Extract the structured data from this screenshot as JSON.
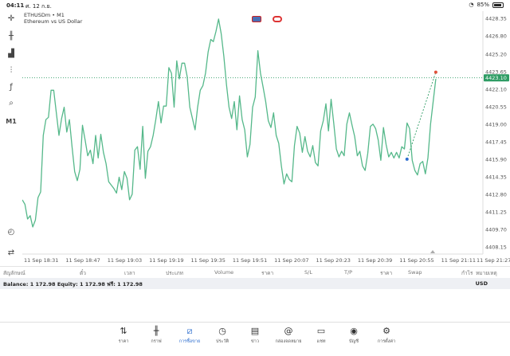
{
  "status": {
    "time": "04:11",
    "date": "ศ. 12 ก.ย.",
    "battery": "85%"
  },
  "symbol": {
    "title": "ETHUSDm • M1",
    "description": "Ethereum vs US Dollar"
  },
  "current_price": "4423.10",
  "colors": {
    "line": "#55b88a",
    "price_badge": "#2e9c64",
    "accent": "#2f6fcf"
  },
  "toolbar": {
    "timeframe": "M1"
  },
  "chart_data": {
    "type": "line",
    "y_ticks": [
      "4428.35",
      "4426.80",
      "4425.20",
      "4423.65",
      "4422.10",
      "4420.55",
      "4419.00",
      "4417.45",
      "4415.90",
      "4414.35",
      "4412.80",
      "4411.25",
      "4409.70",
      "4408.15"
    ],
    "x_ticks": [
      "11 Sep 18:31",
      "11 Sep 18:47",
      "11 Sep 19:03",
      "11 Sep 19:19",
      "11 Sep 19:35",
      "11 Sep 19:51",
      "11 Sep 20:07",
      "11 Sep 20:23",
      "11 Sep 20:39",
      "11 Sep 20:55",
      "11 Sep 21:11",
      "11 Sep 21:27"
    ],
    "ylim": [
      4407.5,
      4429.0
    ],
    "xlim": [
      0,
      176
    ],
    "x": [
      0,
      1,
      2,
      3,
      4,
      5,
      6,
      7,
      8,
      9,
      10,
      11,
      12,
      13,
      14,
      15,
      16,
      17,
      18,
      19,
      20,
      21,
      22,
      23,
      24,
      25,
      26,
      27,
      28,
      29,
      30,
      31,
      32,
      33,
      34,
      35,
      36,
      37,
      38,
      39,
      40,
      41,
      42,
      43,
      44,
      45,
      46,
      47,
      48,
      49,
      50,
      51,
      52,
      53,
      54,
      55,
      56,
      57,
      58,
      59,
      60,
      61,
      62,
      63,
      64,
      65,
      66,
      67,
      68,
      69,
      70,
      71,
      72,
      73,
      74,
      75,
      76,
      77,
      78,
      79,
      80,
      81,
      82,
      83,
      84,
      85,
      86,
      87,
      88,
      89,
      90,
      91,
      92,
      93,
      94,
      95,
      96,
      97,
      98,
      99,
      100,
      101,
      102,
      103,
      104,
      105,
      106,
      107,
      108,
      109,
      110,
      111,
      112,
      113,
      114,
      115,
      116,
      117,
      118,
      119,
      120,
      121,
      122,
      123,
      124,
      125,
      126,
      127,
      128,
      129,
      130,
      131,
      132,
      133,
      134,
      135,
      136,
      137,
      138,
      139,
      140,
      141,
      142,
      143,
      144,
      145,
      146,
      147,
      148,
      149,
      150,
      151,
      152,
      153,
      154,
      155,
      156,
      157,
      158
    ],
    "values": [
      4412.3,
      4411.9,
      4410.6,
      4410.9,
      4409.9,
      4410.5,
      4412.5,
      4413.0,
      4418.0,
      4419.4,
      4419.6,
      4422.0,
      4422.0,
      4420.0,
      4418.0,
      4419.5,
      4420.5,
      4418.3,
      4419.4,
      4417.0,
      4414.8,
      4414.0,
      4415.0,
      4418.9,
      4417.6,
      4416.2,
      4416.7,
      4415.5,
      4418.0,
      4416.0,
      4418.1,
      4416.5,
      4415.5,
      4413.9,
      4413.6,
      4413.3,
      4412.9,
      4414.3,
      4413.2,
      4414.8,
      4414.2,
      4412.3,
      4412.8,
      4416.7,
      4417.0,
      4415.0,
      4418.8,
      4414.2,
      4416.6,
      4417.0,
      4418.0,
      4419.4,
      4421.0,
      4419.1,
      4420.6,
      4420.6,
      4424.0,
      4423.5,
      4420.5,
      4424.6,
      4423.0,
      4424.4,
      4424.4,
      4423.2,
      4420.5,
      4419.5,
      4418.5,
      4420.5,
      4422.0,
      4422.4,
      4423.5,
      4425.4,
      4426.5,
      4426.3,
      4427.2,
      4428.3,
      4427.0,
      4425.0,
      4422.5,
      4420.5,
      4419.5,
      4421.0,
      4418.5,
      4421.5,
      4419.4,
      4418.5,
      4416.1,
      4417.2,
      4420.5,
      4421.4,
      4425.5,
      4423.5,
      4422.3,
      4421.0,
      4419.3,
      4418.7,
      4420.0,
      4418.0,
      4417.3,
      4415.3,
      4413.7,
      4414.6,
      4414.1,
      4413.9,
      4417.1,
      4418.8,
      4418.2,
      4416.5,
      4417.9,
      4416.6,
      4416.1,
      4417.1,
      4415.6,
      4415.3,
      4418.4,
      4419.3,
      4420.8,
      4418.4,
      4421.2,
      4419.1,
      4416.8,
      4416.1,
      4416.6,
      4416.2,
      4419.0,
      4420.0,
      4418.9,
      4417.9,
      4416.2,
      4416.6,
      4415.3,
      4414.9,
      4416.4,
      4418.8,
      4419.0,
      4418.6,
      4417.6,
      4415.8,
      4418.7,
      4417.2,
      4416.1,
      4416.5,
      4416.0,
      4416.5,
      4416.0,
      4417.0,
      4416.8,
      4419.1,
      4418.6,
      4415.8,
      4414.9,
      4414.5,
      4415.5,
      4415.7,
      4414.6,
      4416.0,
      4419.0,
      4421.0,
      4423.0
    ],
    "trendline": {
      "from": [
        4415.9
      ],
      "to": [
        4423.6
      ]
    },
    "grid": false
  },
  "columns": [
    "สัญลักษณ์",
    "ตั๋ว",
    "เวลา",
    "ประเภท",
    "Volume",
    "ราคา",
    "S/L",
    "T/P",
    "ราคา",
    "Swap",
    "กำไร",
    "หมายเหตุ"
  ],
  "account": {
    "summary": "Balance: 1 172.98 Equity: 1 172.98 ฟรี: 1 172.98",
    "currency": "USD"
  },
  "tabs": [
    {
      "label": "ราคา",
      "icon": "quotes-icon"
    },
    {
      "label": "กราฟ",
      "icon": "candles-icon"
    },
    {
      "label": "การซื้อขาย",
      "icon": "trade-chart-icon",
      "active": true
    },
    {
      "label": "ประวัติ",
      "icon": "history-icon"
    },
    {
      "label": "ข่าว",
      "icon": "news-icon"
    },
    {
      "label": "กล่องจดหมาย",
      "icon": "mail-icon"
    },
    {
      "label": "แชท",
      "icon": "chat-icon"
    },
    {
      "label": "บัญชี",
      "icon": "account-icon"
    },
    {
      "label": "การตั้งค่า",
      "icon": "settings-icon"
    }
  ]
}
